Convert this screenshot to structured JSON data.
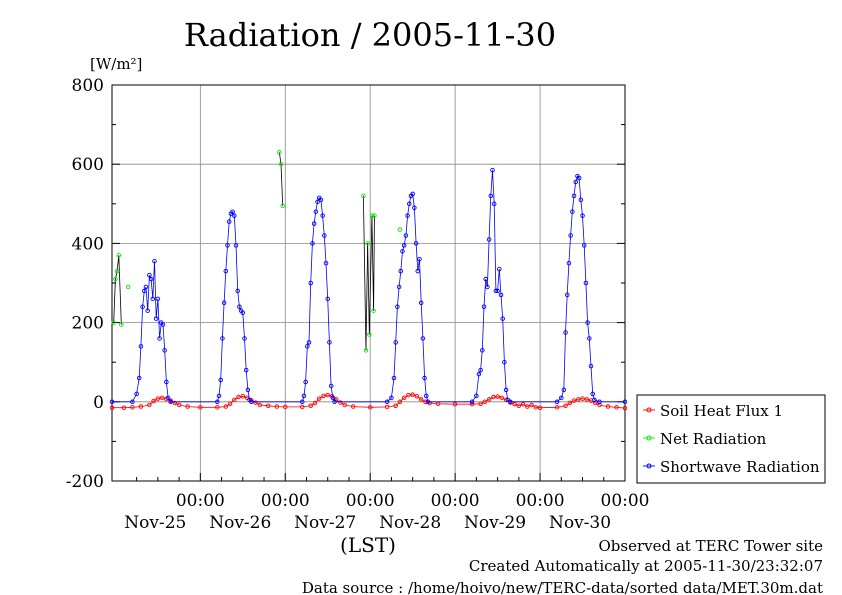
{
  "chart_data": {
    "type": "line",
    "title": "Radiation / 2005-11-30",
    "ylabel_unit": "[W/m²]",
    "xlabel": "(LST)",
    "ylim": [
      -200,
      800
    ],
    "yticks": [
      "800",
      "600",
      "400",
      "200",
      "0",
      "-200"
    ],
    "xticks": [
      {
        "time": "00:00",
        "date": "Nov-25"
      },
      {
        "time": "00:00",
        "date": "Nov-26"
      },
      {
        "time": "00:00",
        "date": "Nov-27"
      },
      {
        "time": "00:00",
        "date": "Nov-28"
      },
      {
        "time": "00:00",
        "date": "Nov-29"
      },
      {
        "time": "00:00",
        "date": "Nov-30"
      }
    ],
    "x_unit": "days since first tick (00:00 Nov-25)",
    "xlim": [
      -1.04,
      5.0
    ],
    "legend_placement": "right",
    "series": [
      {
        "name": "Soil Heat Flux 1",
        "color": "#ff0000",
        "points": [
          [
            -1.04,
            -15
          ],
          [
            -0.9,
            -15
          ],
          [
            -0.8,
            -14
          ],
          [
            -0.7,
            -12
          ],
          [
            -0.6,
            -8
          ],
          [
            -0.55,
            2
          ],
          [
            -0.5,
            8
          ],
          [
            -0.45,
            10
          ],
          [
            -0.4,
            7
          ],
          [
            -0.35,
            3
          ],
          [
            -0.3,
            -3
          ],
          [
            -0.25,
            -8
          ],
          [
            -0.15,
            -12
          ],
          [
            0,
            -14
          ],
          [
            0.2,
            -14
          ],
          [
            0.3,
            -12
          ],
          [
            0.35,
            -5
          ],
          [
            0.4,
            5
          ],
          [
            0.45,
            12
          ],
          [
            0.5,
            14
          ],
          [
            0.55,
            10
          ],
          [
            0.6,
            4
          ],
          [
            0.65,
            -2
          ],
          [
            0.7,
            -8
          ],
          [
            0.8,
            -10
          ],
          [
            0.9,
            -12
          ],
          [
            1.0,
            -13
          ],
          [
            1.2,
            -13
          ],
          [
            1.3,
            -10
          ],
          [
            1.35,
            -3
          ],
          [
            1.4,
            8
          ],
          [
            1.45,
            15
          ],
          [
            1.5,
            17
          ],
          [
            1.55,
            14
          ],
          [
            1.6,
            6
          ],
          [
            1.65,
            -2
          ],
          [
            1.7,
            -8
          ],
          [
            1.8,
            -12
          ],
          [
            2.0,
            -14
          ],
          [
            2.2,
            -13
          ],
          [
            2.3,
            -10
          ],
          [
            2.35,
            0
          ],
          [
            2.4,
            10
          ],
          [
            2.45,
            17
          ],
          [
            2.5,
            18
          ],
          [
            2.55,
            14
          ],
          [
            2.6,
            6
          ],
          [
            2.65,
            0
          ],
          [
            2.7,
            -3
          ],
          [
            2.8,
            -5
          ],
          [
            3.0,
            -6
          ],
          [
            3.2,
            -6
          ],
          [
            3.3,
            -5
          ],
          [
            3.35,
            0
          ],
          [
            3.4,
            6
          ],
          [
            3.45,
            12
          ],
          [
            3.5,
            13
          ],
          [
            3.55,
            10
          ],
          [
            3.6,
            5
          ],
          [
            3.65,
            -2
          ],
          [
            3.7,
            -6
          ],
          [
            3.75,
            -10
          ],
          [
            3.8,
            -6
          ],
          [
            3.85,
            -12
          ],
          [
            3.9,
            -8
          ],
          [
            3.95,
            -14
          ],
          [
            4.0,
            -15
          ],
          [
            4.2,
            -14
          ],
          [
            4.3,
            -10
          ],
          [
            4.35,
            -3
          ],
          [
            4.4,
            3
          ],
          [
            4.45,
            6
          ],
          [
            4.5,
            8
          ],
          [
            4.55,
            6
          ],
          [
            4.6,
            3
          ],
          [
            4.65,
            -3
          ],
          [
            4.7,
            -8
          ],
          [
            4.8,
            -12
          ],
          [
            4.9,
            -14
          ],
          [
            5.0,
            -16
          ]
        ]
      },
      {
        "name": "Net Radiation",
        "color": "#00ee00",
        "points": [
          [
            -1.02,
            200
          ],
          [
            -1.0,
            310
          ],
          [
            -0.98,
            330
          ],
          [
            -0.96,
            370
          ],
          [
            -0.93,
            195
          ],
          [
            -0.85,
            290
          ],
          [
            0.93,
            630
          ],
          [
            0.95,
            600
          ],
          [
            0.97,
            495
          ],
          [
            1.92,
            520
          ],
          [
            1.95,
            130
          ],
          [
            1.97,
            400
          ],
          [
            1.99,
            170
          ],
          [
            2.02,
            470
          ],
          [
            2.04,
            230
          ],
          [
            2.05,
            470
          ],
          [
            2.35,
            435
          ]
        ]
      },
      {
        "name": "Shortwave Radiation",
        "color": "#0000ff",
        "points": [
          [
            -1.04,
            0
          ],
          [
            -0.8,
            0
          ],
          [
            -0.75,
            20
          ],
          [
            -0.72,
            60
          ],
          [
            -0.7,
            140
          ],
          [
            -0.68,
            240
          ],
          [
            -0.66,
            280
          ],
          [
            -0.64,
            290
          ],
          [
            -0.62,
            230
          ],
          [
            -0.6,
            320
          ],
          [
            -0.58,
            310
          ],
          [
            -0.56,
            260
          ],
          [
            -0.54,
            355
          ],
          [
            -0.52,
            210
          ],
          [
            -0.5,
            260
          ],
          [
            -0.48,
            160
          ],
          [
            -0.46,
            200
          ],
          [
            -0.44,
            195
          ],
          [
            -0.42,
            130
          ],
          [
            -0.4,
            50
          ],
          [
            -0.38,
            10
          ],
          [
            -0.35,
            0
          ],
          [
            0.2,
            0
          ],
          [
            0.22,
            15
          ],
          [
            0.24,
            55
          ],
          [
            0.26,
            160
          ],
          [
            0.28,
            250
          ],
          [
            0.3,
            330
          ],
          [
            0.32,
            395
          ],
          [
            0.34,
            455
          ],
          [
            0.36,
            475
          ],
          [
            0.38,
            480
          ],
          [
            0.4,
            470
          ],
          [
            0.42,
            395
          ],
          [
            0.44,
            280
          ],
          [
            0.46,
            240
          ],
          [
            0.48,
            230
          ],
          [
            0.5,
            225
          ],
          [
            0.52,
            160
          ],
          [
            0.54,
            80
          ],
          [
            0.56,
            30
          ],
          [
            0.58,
            5
          ],
          [
            0.6,
            0
          ],
          [
            1.2,
            0
          ],
          [
            1.22,
            15
          ],
          [
            1.24,
            50
          ],
          [
            1.26,
            140
          ],
          [
            1.28,
            150
          ],
          [
            1.3,
            300
          ],
          [
            1.32,
            400
          ],
          [
            1.34,
            450
          ],
          [
            1.36,
            480
          ],
          [
            1.38,
            505
          ],
          [
            1.4,
            515
          ],
          [
            1.42,
            510
          ],
          [
            1.44,
            470
          ],
          [
            1.46,
            420
          ],
          [
            1.48,
            350
          ],
          [
            1.5,
            260
          ],
          [
            1.52,
            150
          ],
          [
            1.54,
            40
          ],
          [
            1.56,
            10
          ],
          [
            1.58,
            0
          ],
          [
            2.2,
            0
          ],
          [
            2.25,
            10
          ],
          [
            2.28,
            60
          ],
          [
            2.3,
            150
          ],
          [
            2.32,
            240
          ],
          [
            2.34,
            290
          ],
          [
            2.36,
            330
          ],
          [
            2.38,
            380
          ],
          [
            2.4,
            395
          ],
          [
            2.42,
            420
          ],
          [
            2.44,
            470
          ],
          [
            2.46,
            500
          ],
          [
            2.48,
            520
          ],
          [
            2.5,
            525
          ],
          [
            2.52,
            490
          ],
          [
            2.54,
            400
          ],
          [
            2.56,
            330
          ],
          [
            2.58,
            360
          ],
          [
            2.6,
            250
          ],
          [
            2.62,
            160
          ],
          [
            2.64,
            60
          ],
          [
            2.66,
            15
          ],
          [
            2.68,
            0
          ],
          [
            3.2,
            0
          ],
          [
            3.25,
            15
          ],
          [
            3.28,
            70
          ],
          [
            3.3,
            80
          ],
          [
            3.32,
            130
          ],
          [
            3.34,
            240
          ],
          [
            3.36,
            310
          ],
          [
            3.38,
            290
          ],
          [
            3.4,
            410
          ],
          [
            3.42,
            520
          ],
          [
            3.44,
            585
          ],
          [
            3.46,
            500
          ],
          [
            3.48,
            280
          ],
          [
            3.5,
            280
          ],
          [
            3.52,
            335
          ],
          [
            3.54,
            270
          ],
          [
            3.56,
            210
          ],
          [
            3.58,
            100
          ],
          [
            3.6,
            30
          ],
          [
            3.62,
            5
          ],
          [
            3.65,
            0
          ],
          [
            4.2,
            0
          ],
          [
            4.25,
            10
          ],
          [
            4.28,
            30
          ],
          [
            4.3,
            175
          ],
          [
            4.32,
            270
          ],
          [
            4.34,
            350
          ],
          [
            4.36,
            420
          ],
          [
            4.38,
            480
          ],
          [
            4.4,
            520
          ],
          [
            4.42,
            555
          ],
          [
            4.44,
            570
          ],
          [
            4.46,
            565
          ],
          [
            4.48,
            510
          ],
          [
            4.5,
            470
          ],
          [
            4.52,
            395
          ],
          [
            4.54,
            300
          ],
          [
            4.56,
            200
          ],
          [
            4.58,
            160
          ],
          [
            4.6,
            90
          ],
          [
            4.62,
            20
          ],
          [
            4.64,
            5
          ],
          [
            4.7,
            0
          ],
          [
            5.0,
            0
          ]
        ]
      }
    ]
  },
  "footer": {
    "line1": "Observed at TERC Tower site",
    "line2": "Created Automatically at 2005-11-30/23:32:07",
    "line3": "Data source : /home/hoivo/new/TERC-data/sorted  data/MET.30m.dat"
  }
}
